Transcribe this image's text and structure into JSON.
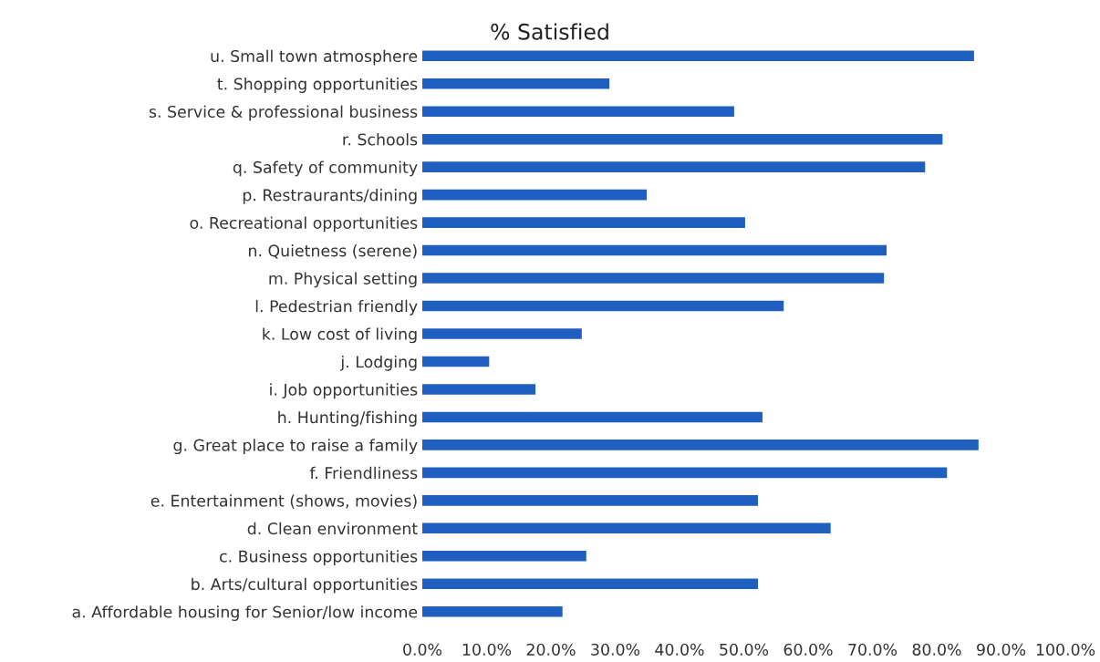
{
  "chart_data": {
    "type": "bar",
    "orientation": "horizontal",
    "title": "% Satisfied",
    "categories": [
      "u. Small town atmosphere",
      "t. Shopping opportunities",
      "s. Service & professional business",
      "r. Schools",
      "q. Safety of community",
      "p. Restraurants/dining",
      "o. Recreational opportunities",
      "n. Quietness (serene)",
      "m. Physical setting",
      "l. Pedestrian friendly",
      "k. Low cost of living",
      "j. Lodging",
      "i. Job opportunities",
      "h. Hunting/fishing",
      "g. Great place to raise a family",
      "f. Friendliness",
      "e. Entertainment (shows, movies)",
      "d. Clean environment",
      "c. Business opportunities",
      "b. Arts/cultural opportunities",
      "a. Affordable housing for Senior/low income"
    ],
    "values": [
      85.8,
      29.1,
      48.5,
      80.9,
      78.2,
      34.9,
      50.2,
      72.2,
      71.8,
      56.2,
      24.8,
      10.4,
      17.6,
      52.9,
      86.5,
      81.6,
      52.2,
      63.5,
      25.5,
      52.2,
      21.8
    ],
    "color": "#1f5fbf",
    "xlim": [
      0,
      100
    ],
    "xticks": [
      {
        "value": 0,
        "label": "0.0%"
      },
      {
        "value": 10,
        "label": "10.0%"
      },
      {
        "value": 20,
        "label": "20.0%"
      },
      {
        "value": 30,
        "label": "30.0%"
      },
      {
        "value": 40,
        "label": "40.0%"
      },
      {
        "value": 50,
        "label": "50.0%"
      },
      {
        "value": 60,
        "label": "60.0%"
      },
      {
        "value": 70,
        "label": "70.0%"
      },
      {
        "value": 80,
        "label": "80.0%"
      },
      {
        "value": 90,
        "label": "90.0%"
      },
      {
        "value": 100,
        "label": "100.0%"
      }
    ],
    "grid": false,
    "legend": false
  }
}
